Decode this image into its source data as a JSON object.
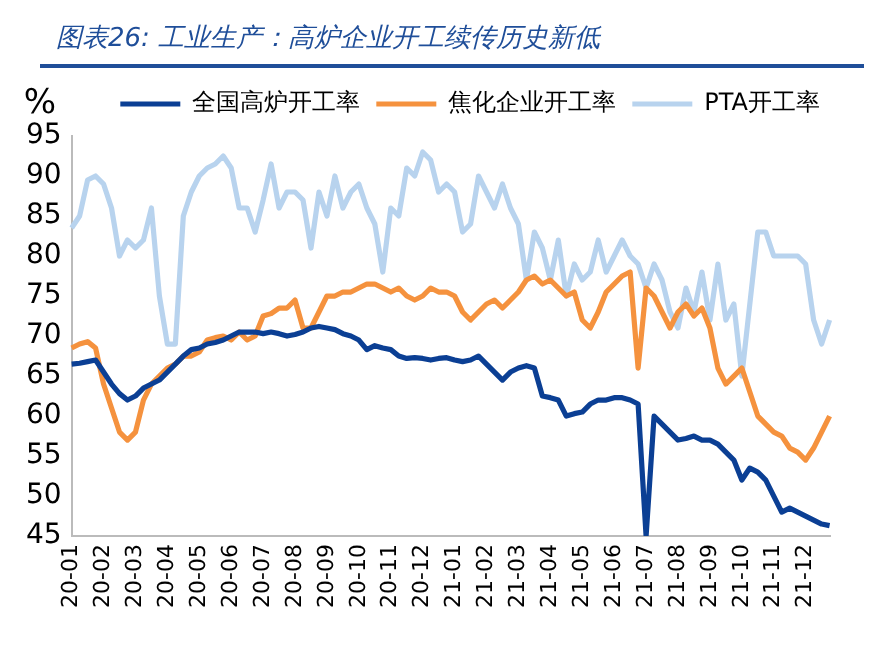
{
  "chart_data": {
    "type": "line",
    "title": "图表26: 工业生产：高炉企业开工续传历史新低",
    "ylabel": "%",
    "categories": [
      "20-01",
      null,
      null,
      null,
      "20-02",
      null,
      null,
      null,
      "20-03",
      null,
      null,
      null,
      "20-04",
      null,
      null,
      null,
      "20-05",
      null,
      null,
      null,
      "20-06",
      null,
      null,
      null,
      "20-07",
      null,
      null,
      null,
      "20-08",
      null,
      null,
      null,
      "20-09",
      null,
      null,
      null,
      "20-10",
      null,
      null,
      null,
      "20-11",
      null,
      null,
      null,
      "20-12",
      null,
      null,
      null,
      "21-01",
      null,
      null,
      null,
      "21-02",
      null,
      null,
      null,
      "21-03",
      null,
      null,
      null,
      "21-04",
      null,
      null,
      null,
      "21-05",
      null,
      null,
      null,
      "21-06",
      null,
      null,
      null,
      "21-07",
      null,
      null,
      null,
      "21-08",
      null,
      null,
      null,
      "21-09",
      null,
      null,
      null,
      "21-10",
      null,
      null,
      null,
      "21-11",
      null,
      null,
      null,
      "21-12",
      null,
      null,
      null
    ],
    "series": [
      {
        "name": "全国高炉开工率",
        "color": "#0b3f94",
        "values": [
          66.5,
          66.6,
          66.8,
          67,
          65.5,
          64,
          62.8,
          62,
          62.5,
          63.5,
          64,
          64.5,
          65.5,
          66.5,
          67.5,
          68.3,
          68.5,
          69,
          69.2,
          69.5,
          70,
          70.5,
          70.5,
          70.5,
          70.3,
          70.5,
          70.3,
          70,
          70.2,
          70.5,
          71,
          71.2,
          71,
          70.8,
          70.3,
          70,
          69.5,
          68.3,
          68.8,
          68.5,
          68.3,
          67.5,
          67.2,
          67.3,
          67.2,
          67,
          67.2,
          67.3,
          67,
          66.8,
          67,
          67.5,
          66.5,
          65.5,
          64.5,
          65.5,
          66,
          66.3,
          66,
          62.5,
          62.3,
          62,
          60,
          60.3,
          60.5,
          61.5,
          62,
          62,
          62.3,
          62.3,
          62,
          61.5,
          45,
          60,
          59,
          58,
          57,
          57.2,
          57.5,
          57,
          57,
          56.5,
          55.5,
          54.5,
          52,
          53.5,
          53,
          52,
          50,
          48,
          48.5,
          48,
          47.5,
          47,
          46.5,
          46.3
        ]
      },
      {
        "name": "焦化企业开工率",
        "color": "#f5923e",
        "values": [
          68.5,
          69,
          69.3,
          68.5,
          64,
          61,
          58,
          57,
          58,
          62,
          64,
          65,
          66,
          66.5,
          67.5,
          67.5,
          68,
          69.5,
          69.8,
          70,
          69.5,
          70.5,
          69.5,
          70,
          72.5,
          72.8,
          73.5,
          73.5,
          74.5,
          71,
          71,
          73,
          75,
          75,
          75.5,
          75.5,
          76,
          76.5,
          76.5,
          76,
          75.5,
          76,
          75,
          74.5,
          75,
          76,
          75.5,
          75.5,
          75,
          73,
          72,
          73,
          74,
          74.5,
          73.5,
          74.5,
          75.5,
          77,
          77.5,
          76.5,
          77,
          76,
          75,
          75.5,
          72,
          71,
          73,
          75.5,
          76.5,
          77.5,
          78,
          66,
          76,
          75,
          73,
          71,
          73,
          74,
          72.5,
          73.5,
          71,
          66,
          64,
          65,
          66,
          63,
          60,
          59,
          58,
          57.5,
          56,
          55.5,
          54.5,
          56,
          58,
          60
        ]
      },
      {
        "name": "PTA开工率",
        "color": "#b8d3ee",
        "values": [
          83.5,
          85,
          89.5,
          90,
          89,
          86,
          80,
          82,
          81,
          82,
          86,
          75,
          69,
          69,
          85,
          88,
          90,
          91,
          91.5,
          92.5,
          91,
          86,
          86,
          83,
          87,
          91.5,
          86,
          88,
          88,
          87,
          81,
          88,
          85,
          90,
          86,
          88,
          89,
          86,
          84,
          78,
          86,
          85,
          91,
          90,
          93,
          92,
          88,
          89,
          88,
          83,
          84,
          90,
          88,
          86,
          89,
          86,
          84,
          77,
          83,
          81,
          77,
          82,
          75,
          79,
          77,
          78,
          82,
          78,
          80,
          82,
          80,
          79,
          76,
          79,
          77,
          73,
          71,
          76,
          73,
          78,
          72,
          79,
          72,
          74,
          65,
          74,
          83,
          83,
          80,
          80,
          80,
          80,
          79,
          72,
          69,
          72
        ]
      }
    ],
    "ylim": [
      45,
      95
    ],
    "yticks": [
      45,
      50,
      55,
      60,
      65,
      70,
      75,
      80,
      85,
      90,
      95
    ],
    "grid": false,
    "legend": "top",
    "marker": "none",
    "line_style": "solid"
  }
}
